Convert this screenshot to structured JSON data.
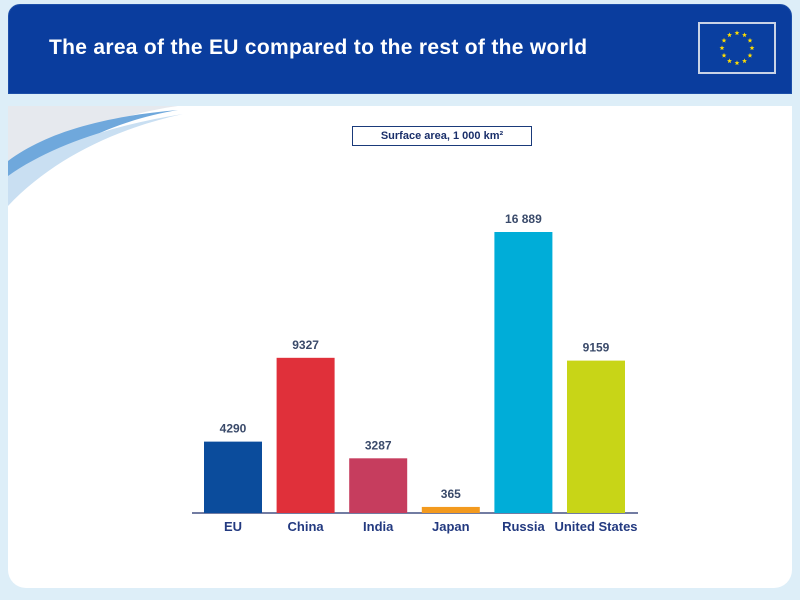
{
  "slide": {
    "title": "The area of the EU compared to the rest of the world"
  },
  "chart_data": {
    "type": "bar",
    "title": "Surface area, 1 000 km²",
    "categories": [
      "EU",
      "China",
      "India",
      "Japan",
      "Russia",
      "United States"
    ],
    "values": [
      4290,
      9327,
      3287,
      365,
      16889,
      9159
    ],
    "value_labels": [
      "4290",
      "9327",
      "3287",
      "365",
      "16 889",
      "9159"
    ],
    "colors": [
      "#0b4c9c",
      "#e0303a",
      "#c63d5e",
      "#f39a1e",
      "#00add8",
      "#c8d517"
    ],
    "ylim": [
      0,
      16889
    ],
    "grid": false,
    "legend": "none"
  },
  "icons": {
    "flag": "eu-flag-icon"
  }
}
